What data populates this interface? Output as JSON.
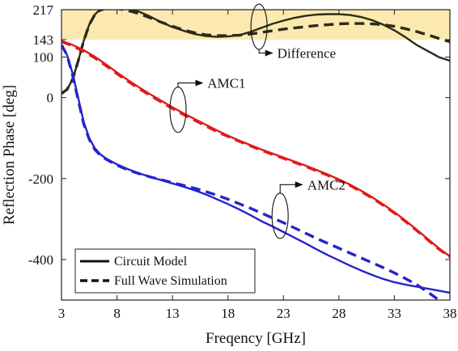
{
  "chart_data": {
    "type": "line",
    "title": "",
    "xlabel": "Freqency [GHz]",
    "ylabel": "Reflection Phase [deg]",
    "xlim": [
      3,
      38
    ],
    "ylim": [
      -500,
      217
    ],
    "x_ticks": [
      3,
      8,
      13,
      18,
      23,
      28,
      33,
      38
    ],
    "x_tick_labels": [
      "3",
      "8",
      "13",
      "18",
      "23",
      "28",
      "33",
      "38"
    ],
    "y_ticks": [
      -400,
      -200,
      0,
      100,
      143,
      217
    ],
    "y_tick_labels": [
      "-400",
      "-200",
      "0",
      "100",
      "143",
      "217"
    ],
    "grid": false,
    "band": {
      "from": 143,
      "to": 217,
      "color": "#fce9b0"
    },
    "series": [
      {
        "name": "Circuit Model",
        "group": "Difference",
        "color": "#2b2b1a",
        "dash": "solid",
        "x": [
          3,
          3.5,
          4,
          4.5,
          5,
          5.5,
          6,
          6.5,
          7,
          7.5,
          8,
          9,
          10,
          11,
          12,
          13,
          14,
          15,
          16,
          17,
          18,
          19,
          20,
          21,
          22,
          23,
          24,
          25,
          26,
          27,
          28,
          29,
          30,
          31,
          32,
          33,
          34,
          35,
          36,
          37,
          38
        ],
        "y": [
          10,
          20,
          45,
          90,
          140,
          180,
          205,
          218,
          224,
          226,
          225,
          220,
          212,
          200,
          186,
          174,
          165,
          157,
          152,
          150,
          151,
          154,
          162,
          172,
          182,
          190,
          197,
          202,
          205,
          206,
          206,
          204,
          199,
          191,
          180,
          166,
          149,
          130,
          115,
          100,
          91
        ]
      },
      {
        "name": "Full Wave Simulation",
        "group": "Difference",
        "color": "#2b2b1a",
        "dash": "dashed",
        "x": [
          3,
          3.5,
          4,
          4.5,
          5,
          5.5,
          6,
          6.5,
          7,
          7.5,
          8,
          9,
          10,
          11,
          12,
          13,
          14,
          15,
          16,
          17,
          18,
          19,
          20,
          21,
          22,
          23,
          24,
          25,
          26,
          27,
          28,
          29,
          30,
          31,
          32,
          33,
          34,
          35,
          36,
          37,
          38
        ],
        "y": [
          10,
          20,
          45,
          90,
          140,
          180,
          205,
          216,
          220,
          221,
          220,
          215,
          207,
          197,
          186,
          176,
          167,
          160,
          155,
          153,
          153,
          154,
          157,
          161,
          165,
          169,
          172,
          175,
          178,
          180,
          182,
          183,
          183,
          182,
          180,
          176,
          170,
          163,
          155,
          146,
          138
        ]
      },
      {
        "name": "Circuit Model",
        "group": "AMC1",
        "color": "#e01a1a",
        "dash": "solid",
        "x": [
          3,
          4,
          5,
          6,
          7,
          8,
          9,
          10,
          11,
          12,
          13,
          14,
          15,
          16,
          17,
          18,
          19,
          20,
          21,
          22,
          23,
          24,
          25,
          26,
          27,
          28,
          29,
          30,
          31,
          32,
          33,
          34,
          35,
          36,
          37,
          38
        ],
        "y": [
          140,
          130,
          117,
          101,
          82,
          62,
          43,
          25,
          8,
          -8,
          -24,
          -39,
          -53,
          -67,
          -81,
          -94,
          -106,
          -117,
          -128,
          -138,
          -148,
          -158,
          -168,
          -179,
          -190,
          -202,
          -215,
          -230,
          -246,
          -264,
          -283,
          -304,
          -326,
          -349,
          -372,
          -392
        ]
      },
      {
        "name": "Full Wave Simulation",
        "group": "AMC1",
        "color": "#e01a1a",
        "dash": "dashed",
        "x": [
          3,
          4,
          5,
          6,
          7,
          8,
          9,
          10,
          11,
          12,
          13,
          14,
          15,
          16,
          17,
          18,
          19,
          20,
          21,
          22,
          23,
          24,
          25,
          26,
          27,
          28,
          29,
          30,
          31,
          32,
          33,
          34,
          35,
          36,
          37,
          38
        ],
        "y": [
          138,
          128,
          114,
          98,
          79,
          59,
          40,
          22,
          5,
          -11,
          -27,
          -42,
          -56,
          -70,
          -84,
          -96,
          -108,
          -119,
          -130,
          -140,
          -150,
          -160,
          -170,
          -181,
          -192,
          -204,
          -217,
          -232,
          -248,
          -266,
          -285,
          -306,
          -328,
          -351,
          -374,
          -394
        ]
      },
      {
        "name": "Circuit Model",
        "group": "AMC2",
        "color": "#2424cc",
        "dash": "solid",
        "x": [
          3,
          3.5,
          4,
          4.5,
          5,
          5.5,
          6,
          6.5,
          7,
          8,
          9,
          10,
          11,
          12,
          13,
          14,
          15,
          16,
          17,
          18,
          19,
          20,
          21,
          22,
          23,
          24,
          25,
          26,
          27,
          28,
          29,
          30,
          31,
          32,
          33,
          34,
          35,
          36,
          37,
          38
        ],
        "y": [
          128,
          105,
          60,
          0,
          -60,
          -100,
          -125,
          -140,
          -150,
          -165,
          -177,
          -187,
          -196,
          -204,
          -212,
          -220,
          -229,
          -239,
          -251,
          -263,
          -276,
          -290,
          -305,
          -318,
          -332,
          -346,
          -360,
          -375,
          -389,
          -402,
          -415,
          -427,
          -438,
          -448,
          -456,
          -462,
          -467,
          -472,
          -477,
          -482
        ]
      },
      {
        "name": "Full Wave Simulation",
        "group": "AMC2",
        "color": "#2424cc",
        "dash": "dashed",
        "x": [
          3,
          3.5,
          4,
          4.5,
          5,
          5.5,
          6,
          6.5,
          7,
          8,
          9,
          10,
          11,
          12,
          13,
          14,
          15,
          16,
          17,
          18,
          19,
          20,
          21,
          22,
          23,
          24,
          25,
          26,
          27,
          28,
          29,
          30,
          31,
          32,
          33,
          34,
          35,
          36,
          37
        ],
        "y": [
          130,
          105,
          55,
          -5,
          -65,
          -103,
          -128,
          -143,
          -152,
          -167,
          -179,
          -188,
          -196,
          -203,
          -210,
          -217,
          -224,
          -232,
          -241,
          -251,
          -262,
          -273,
          -285,
          -297,
          -309,
          -322,
          -335,
          -348,
          -360,
          -372,
          -384,
          -396,
          -408,
          -420,
          -433,
          -447,
          -462,
          -480,
          -500
        ]
      }
    ],
    "annotations": [
      {
        "text": "Difference",
        "x": 20.8,
        "y": 175,
        "label_x": 22.3,
        "label_y": 110
      },
      {
        "text": "AMC1",
        "x": 13.5,
        "y": -30,
        "label_x": 16.0,
        "label_y": 36
      },
      {
        "text": "AMC2",
        "x": 22.7,
        "y": -292,
        "label_x": 25.0,
        "label_y": -215
      }
    ],
    "legend": {
      "position": "bottom-left",
      "entries": [
        {
          "label": "Circuit Model",
          "dash": "solid"
        },
        {
          "label": "Full Wave Simulation",
          "dash": "dashed"
        }
      ]
    }
  }
}
